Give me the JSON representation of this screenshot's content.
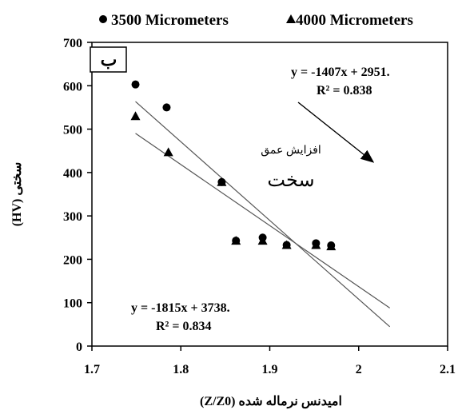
{
  "chart_data": {
    "type": "scatter",
    "panel_label": "ب",
    "xlabel": "امیدنس نرماله شده (Z/Z0)",
    "ylabel": "سختی (HV)",
    "xlim": [
      1.7,
      2.1
    ],
    "ylim": [
      0,
      700
    ],
    "x_ticks": [
      "1.7",
      "1.8",
      "1.9",
      "2",
      "2.1"
    ],
    "x_tick_values": [
      1.7,
      1.8,
      1.9,
      2.0,
      2.1
    ],
    "y_ticks": [
      "0",
      "100",
      "200",
      "300",
      "400",
      "500",
      "600",
      "700"
    ],
    "y_tick_values": [
      0,
      100,
      200,
      300,
      400,
      500,
      600,
      700
    ],
    "grid": false,
    "legend_position": "top",
    "series": [
      {
        "name": "3500 Micrometers",
        "marker": "circle",
        "x": [
          1.749,
          1.784,
          1.846,
          1.862,
          1.892,
          1.919,
          1.952,
          1.969
        ],
        "y": [
          603,
          550,
          378,
          243,
          250,
          233,
          237,
          232
        ]
      },
      {
        "name": "4000 Micrometers",
        "marker": "triangle",
        "x": [
          1.749,
          1.786,
          1.846,
          1.862,
          1.892,
          1.919,
          1.952,
          1.969
        ],
        "y": [
          530,
          447,
          378,
          243,
          243,
          233,
          233,
          230
        ]
      }
    ],
    "trendlines": [
      {
        "equation": "y = -1407x + 2951.",
        "r2": "R² = 0.838",
        "slope": -1407,
        "intercept": 2951,
        "x_range": [
          1.749,
          2.035
        ]
      },
      {
        "equation": "y = -1815x + 3738.",
        "r2": "R² = 0.834",
        "slope": -1815,
        "intercept": 3738,
        "x_range": [
          1.749,
          2.035
        ]
      }
    ],
    "annotations": {
      "line1": "افزایش عمق",
      "line2": "سخت"
    },
    "colors": {
      "markers": "#000000",
      "trendline": "#555555",
      "axis": "#000000"
    }
  }
}
